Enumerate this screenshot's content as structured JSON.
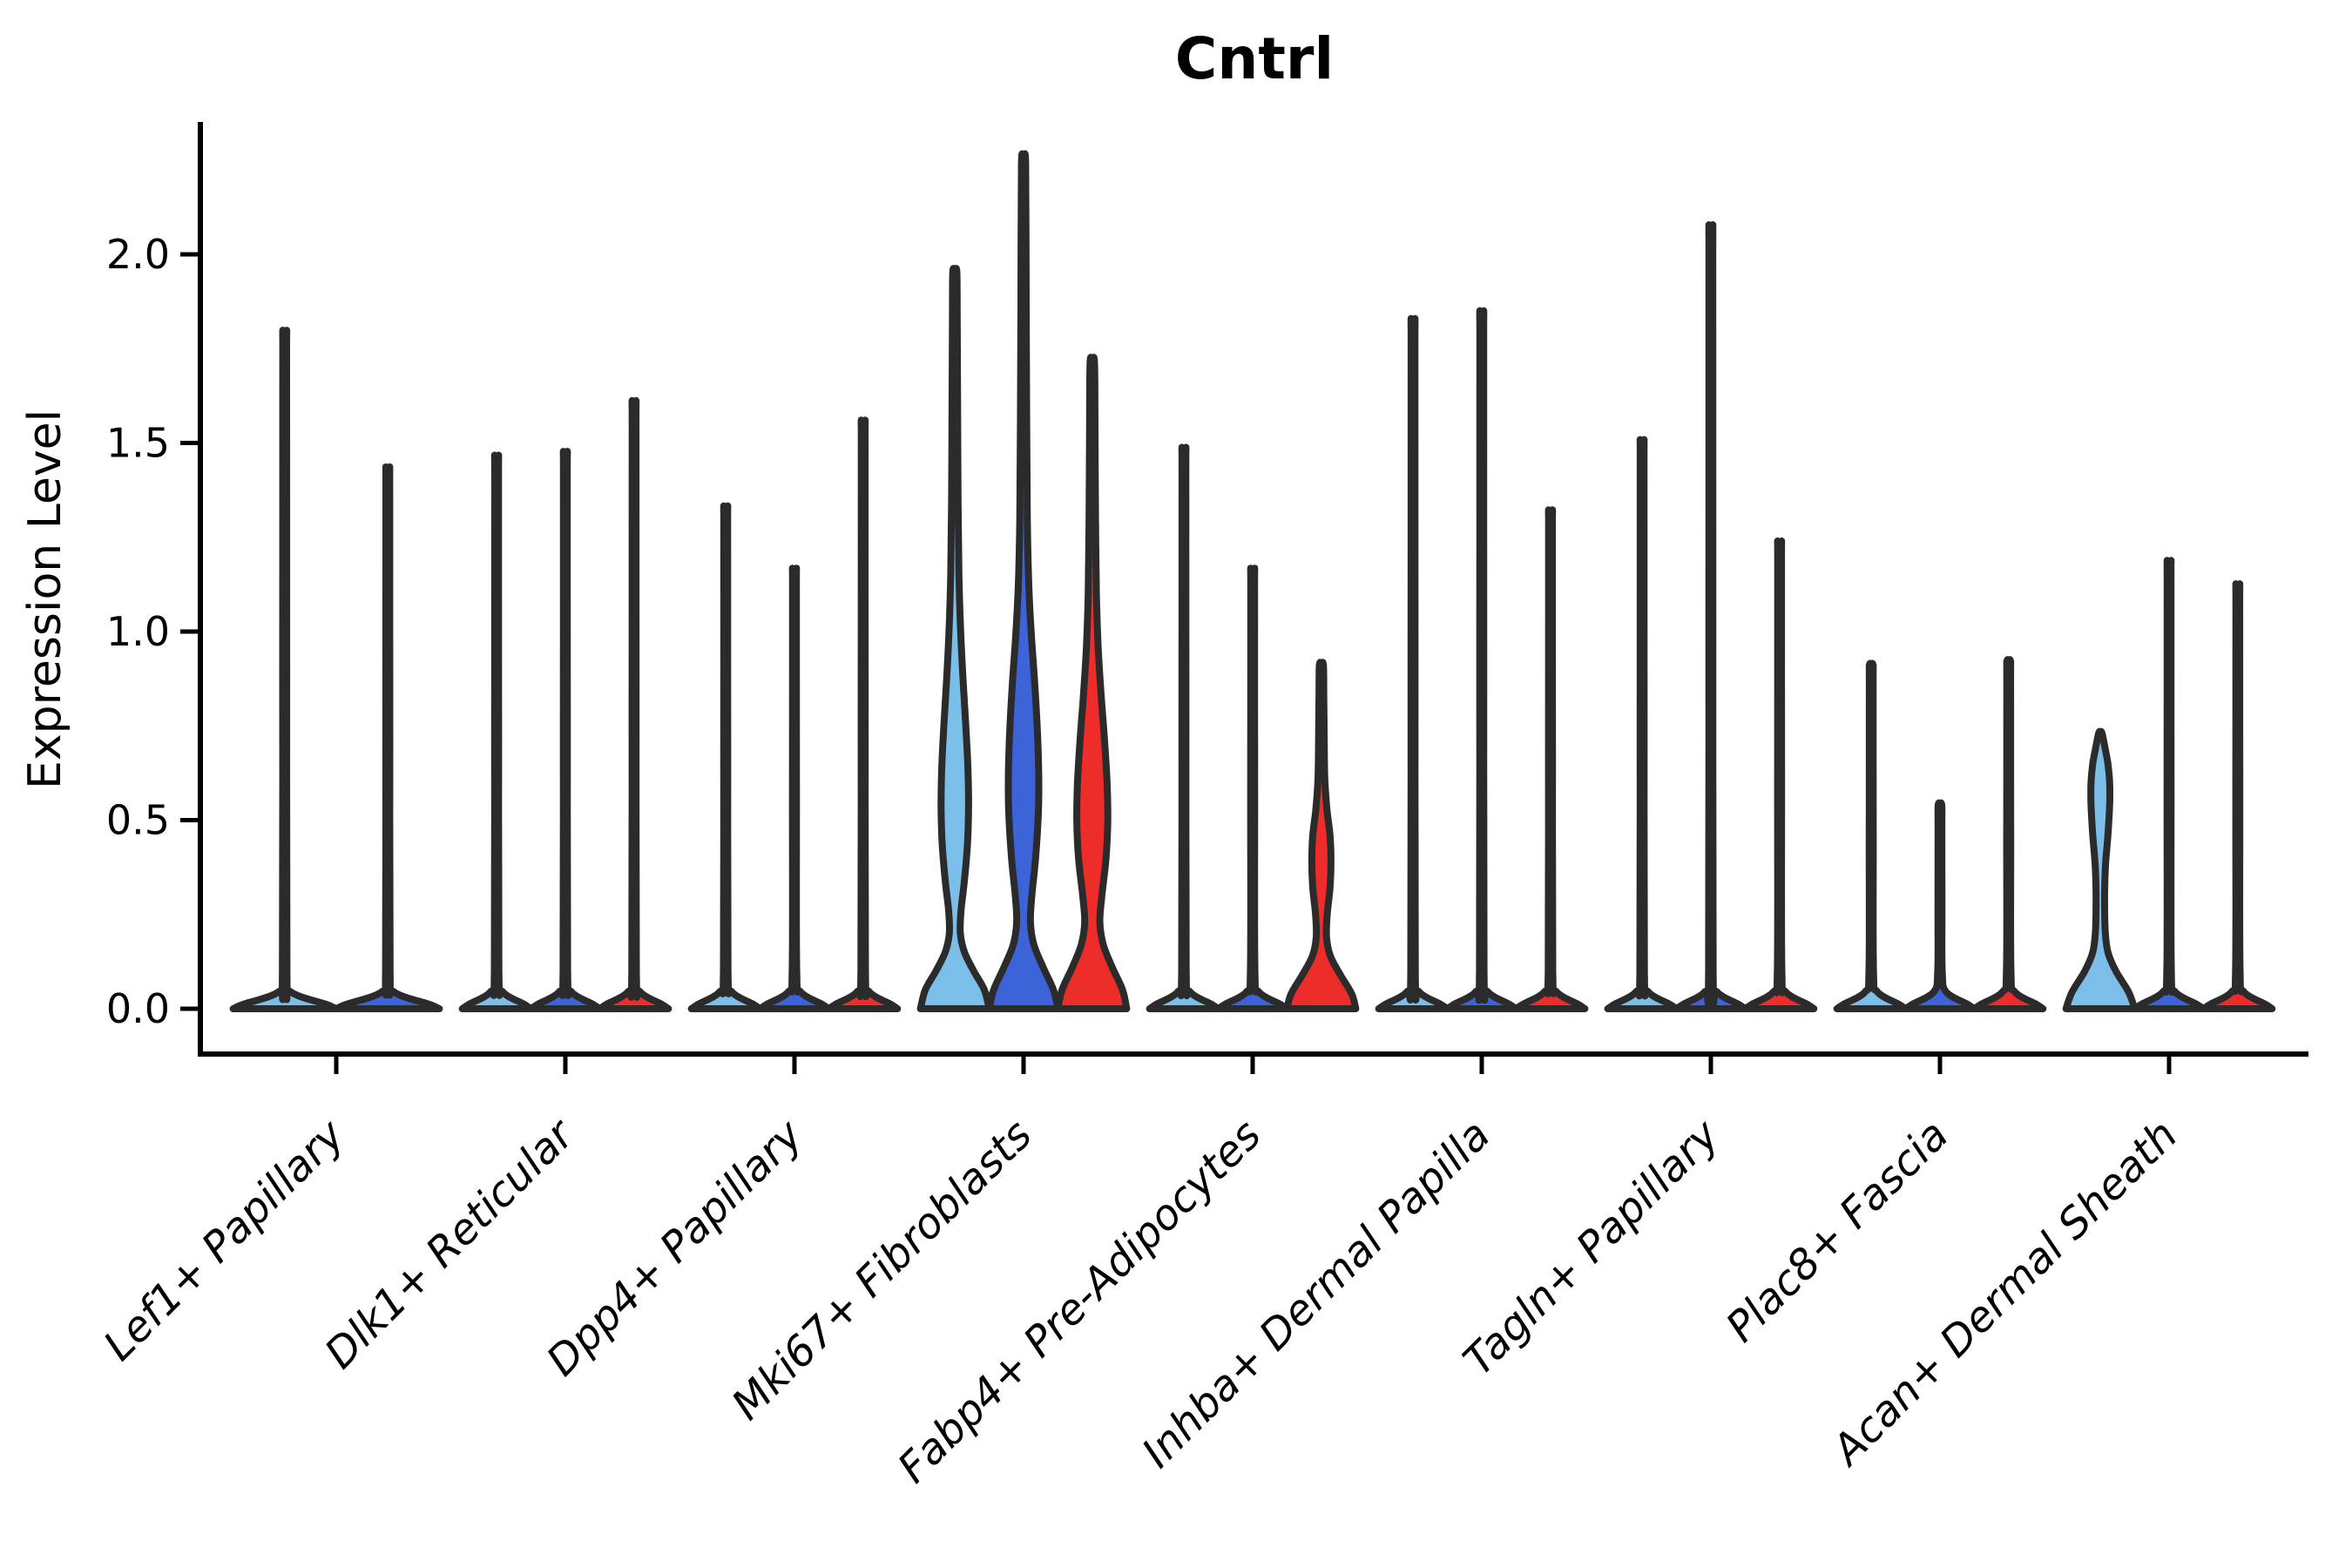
{
  "chart_data": {
    "type": "violin",
    "title": "Cntrl",
    "ylabel": "Expression Level",
    "xlabel": "",
    "ylim": [
      -0.12,
      2.35
    ],
    "yticks": [
      "0.0",
      "0.5",
      "1.0",
      "1.5",
      "2.0"
    ],
    "ytick_values": [
      0.0,
      0.5,
      1.0,
      1.5,
      2.0
    ],
    "grid": "off",
    "legend": "none",
    "categories": [
      "Lef1+ Papillary",
      "Dlk1+ Reticular",
      "Dpp4+ Papillary",
      "Mki67+ Fibroblasts",
      "Fabp4+ Pre-Adipocytes",
      "Inhba+ Dermal Papilla",
      "Tagln+ Papillary",
      "Plac8+ Fascia",
      "Acan+ Dermal Sheath"
    ],
    "colors": {
      "lightblue": "#7CBEEA",
      "royalblue": "#3C64D8",
      "red": "#EE2D2A",
      "outline": "#2b2b2b",
      "axis": "#000000"
    },
    "groups": [
      {
        "category": "Lef1+ Papillary",
        "violins": [
          {
            "max": 1.77,
            "color": "lightblue",
            "kind": "spike"
          },
          {
            "max": 1.42,
            "color": "royalblue",
            "kind": "spike"
          }
        ]
      },
      {
        "category": "Dlk1+ Reticular",
        "violins": [
          {
            "max": 1.45,
            "color": "lightblue",
            "kind": "spike"
          },
          {
            "max": 1.46,
            "color": "royalblue",
            "kind": "spike"
          },
          {
            "max": 1.59,
            "color": "red",
            "kind": "spike"
          }
        ]
      },
      {
        "category": "Dpp4+ Papillary",
        "violins": [
          {
            "max": 1.32,
            "color": "lightblue",
            "kind": "spike"
          },
          {
            "max": 1.16,
            "color": "royalblue",
            "kind": "spike"
          },
          {
            "max": 1.54,
            "color": "red",
            "kind": "spike"
          }
        ]
      },
      {
        "category": "Mki67+ Fibroblasts",
        "violins": [
          {
            "max": 1.95,
            "color": "lightblue",
            "kind": "shaped",
            "profile": [
              [
                0,
                1
              ],
              [
                0.05,
                0.86
              ],
              [
                0.1,
                0.55
              ],
              [
                0.15,
                0.28
              ],
              [
                0.2,
                0.16
              ],
              [
                0.26,
                0.18
              ],
              [
                0.34,
                0.28
              ],
              [
                0.44,
                0.37
              ],
              [
                0.54,
                0.4
              ],
              [
                0.64,
                0.38
              ],
              [
                0.75,
                0.32
              ],
              [
                0.87,
                0.24
              ],
              [
                1.0,
                0.17
              ],
              [
                1.15,
                0.12
              ],
              [
                1.35,
                0.095
              ],
              [
                1.6,
                0.08
              ],
              [
                1.8,
                0.07
              ],
              [
                1.95,
                0.06
              ]
            ]
          },
          {
            "max": 2.24,
            "color": "royalblue",
            "kind": "shaped",
            "profile": [
              [
                0,
                1
              ],
              [
                0.05,
                0.87
              ],
              [
                0.11,
                0.57
              ],
              [
                0.17,
                0.3
              ],
              [
                0.23,
                0.2
              ],
              [
                0.3,
                0.24
              ],
              [
                0.4,
                0.35
              ],
              [
                0.52,
                0.43
              ],
              [
                0.62,
                0.44
              ],
              [
                0.74,
                0.4
              ],
              [
                0.87,
                0.32
              ],
              [
                1.0,
                0.22
              ],
              [
                1.13,
                0.15
              ],
              [
                1.3,
                0.11
              ],
              [
                1.55,
                0.09
              ],
              [
                1.9,
                0.075
              ],
              [
                2.24,
                0.06
              ]
            ]
          },
          {
            "max": 1.71,
            "color": "red",
            "kind": "shaped",
            "profile": [
              [
                0,
                1
              ],
              [
                0.05,
                0.88
              ],
              [
                0.11,
                0.58
              ],
              [
                0.17,
                0.32
              ],
              [
                0.23,
                0.22
              ],
              [
                0.3,
                0.28
              ],
              [
                0.4,
                0.4
              ],
              [
                0.5,
                0.45
              ],
              [
                0.6,
                0.43
              ],
              [
                0.72,
                0.35
              ],
              [
                0.84,
                0.25
              ],
              [
                0.96,
                0.17
              ],
              [
                1.1,
                0.12
              ],
              [
                1.3,
                0.095
              ],
              [
                1.5,
                0.08
              ],
              [
                1.71,
                0.065
              ]
            ]
          }
        ]
      },
      {
        "category": "Fabp4+ Pre-Adipocytes",
        "violins": [
          {
            "max": 1.47,
            "color": "lightblue",
            "kind": "spike"
          },
          {
            "max": 1.16,
            "color": "royalblue",
            "kind": "spike"
          },
          {
            "max": 0.91,
            "color": "red",
            "kind": "shaped",
            "profile": [
              [
                0,
                1
              ],
              [
                0.04,
                0.88
              ],
              [
                0.09,
                0.55
              ],
              [
                0.14,
                0.26
              ],
              [
                0.19,
                0.15
              ],
              [
                0.25,
                0.17
              ],
              [
                0.32,
                0.25
              ],
              [
                0.39,
                0.28
              ],
              [
                0.46,
                0.25
              ],
              [
                0.53,
                0.16
              ],
              [
                0.61,
                0.1
              ],
              [
                0.72,
                0.08
              ],
              [
                0.82,
                0.07
              ],
              [
                0.91,
                0.06
              ]
            ]
          }
        ]
      },
      {
        "category": "Inhba+ Dermal Papilla",
        "violins": [
          {
            "max": 1.8,
            "color": "lightblue",
            "kind": "spike"
          },
          {
            "max": 1.82,
            "color": "royalblue",
            "kind": "spike"
          },
          {
            "max": 1.31,
            "color": "red",
            "kind": "spike"
          }
        ]
      },
      {
        "category": "Tagln+ Papillary",
        "violins": [
          {
            "max": 1.49,
            "color": "lightblue",
            "kind": "spike"
          },
          {
            "max": 2.04,
            "color": "royalblue",
            "kind": "spike"
          },
          {
            "max": 1.23,
            "color": "red",
            "kind": "spike"
          }
        ]
      },
      {
        "category": "Plac8+ Fascia",
        "violins": [
          {
            "max": 0.91,
            "color": "lightblue",
            "kind": "spike"
          },
          {
            "max": 0.54,
            "color": "royalblue",
            "kind": "spike"
          },
          {
            "max": 0.92,
            "color": "red",
            "kind": "spike"
          }
        ]
      },
      {
        "category": "Acan+ Dermal Sheath",
        "violins": [
          {
            "max": 0.73,
            "color": "lightblue",
            "kind": "shaped",
            "profile": [
              [
                0,
                1
              ],
              [
                0.045,
                0.82
              ],
              [
                0.1,
                0.45
              ],
              [
                0.15,
                0.22
              ],
              [
                0.21,
                0.14
              ],
              [
                0.3,
                0.125
              ],
              [
                0.38,
                0.15
              ],
              [
                0.46,
                0.22
              ],
              [
                0.54,
                0.27
              ],
              [
                0.6,
                0.27
              ],
              [
                0.65,
                0.22
              ],
              [
                0.69,
                0.14
              ],
              [
                0.73,
                0.05
              ]
            ]
          },
          {
            "max": 1.18,
            "color": "royalblue",
            "kind": "spike"
          },
          {
            "max": 1.12,
            "color": "red",
            "kind": "spike"
          }
        ]
      }
    ]
  }
}
